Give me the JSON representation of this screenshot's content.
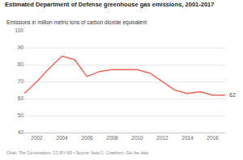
{
  "chart_data": {
    "type": "line",
    "title": "Estimated Department of Defense greenhouse gas emissions, 2001-2017",
    "subtitle": "Emissions in million metric tons of carbon dioxide equivalent",
    "caption": "Chart: The Conversation, CC-BY-ND • Source: Neta C. Crawford • Get the data",
    "x": [
      2001,
      2002,
      2003,
      2004,
      2005,
      2006,
      2007,
      2008,
      2009,
      2010,
      2011,
      2012,
      2013,
      2014,
      2015,
      2016,
      2017
    ],
    "values": [
      63,
      70,
      78,
      85,
      83,
      73,
      76,
      77,
      77,
      77,
      75,
      70,
      65,
      63,
      64,
      62,
      62
    ],
    "value_labels": [
      null,
      null,
      null,
      null,
      null,
      null,
      null,
      null,
      null,
      null,
      null,
      null,
      null,
      null,
      null,
      null,
      "62"
    ],
    "data_labels": true,
    "color": "#e8685a",
    "xlim": [
      2001,
      2017
    ],
    "xticks": [
      2002,
      2004,
      2006,
      2008,
      2010,
      2012,
      2014,
      2016
    ],
    "ylim": [
      40,
      100
    ],
    "yticks": [
      40,
      50,
      60,
      70,
      80,
      90,
      100
    ],
    "grid": true
  }
}
